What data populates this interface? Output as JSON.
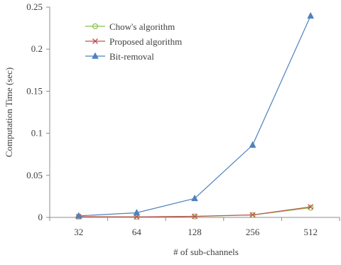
{
  "chart_data": {
    "type": "line",
    "title": "",
    "xlabel": "# of sub-channels",
    "ylabel": "Computation Time (sec)",
    "categories": [
      "32",
      "64",
      "128",
      "256",
      "512"
    ],
    "ylim": [
      0,
      0.25
    ],
    "yticks": [
      "0",
      "0.05",
      "0.1",
      "0.15",
      "0.2",
      "0.25"
    ],
    "ytick_values": [
      0,
      0.05,
      0.1,
      0.15,
      0.2,
      0.25
    ],
    "grid": false,
    "legend_position": "top-left",
    "series": [
      {
        "name": "Chow's algorithm",
        "values": [
          0.0008,
          0.0006,
          0.0011,
          0.0028,
          0.0115
        ],
        "color": "#8cc152",
        "marker": "circle"
      },
      {
        "name": "Proposed algorithm",
        "values": [
          0.0009,
          0.0007,
          0.0013,
          0.003,
          0.0125
        ],
        "color": "#c0504d",
        "marker": "x"
      },
      {
        "name": "Bit-removal",
        "values": [
          0.0018,
          0.0055,
          0.0225,
          0.086,
          0.2395
        ],
        "color": "#4f81bd",
        "marker": "triangle"
      }
    ]
  }
}
